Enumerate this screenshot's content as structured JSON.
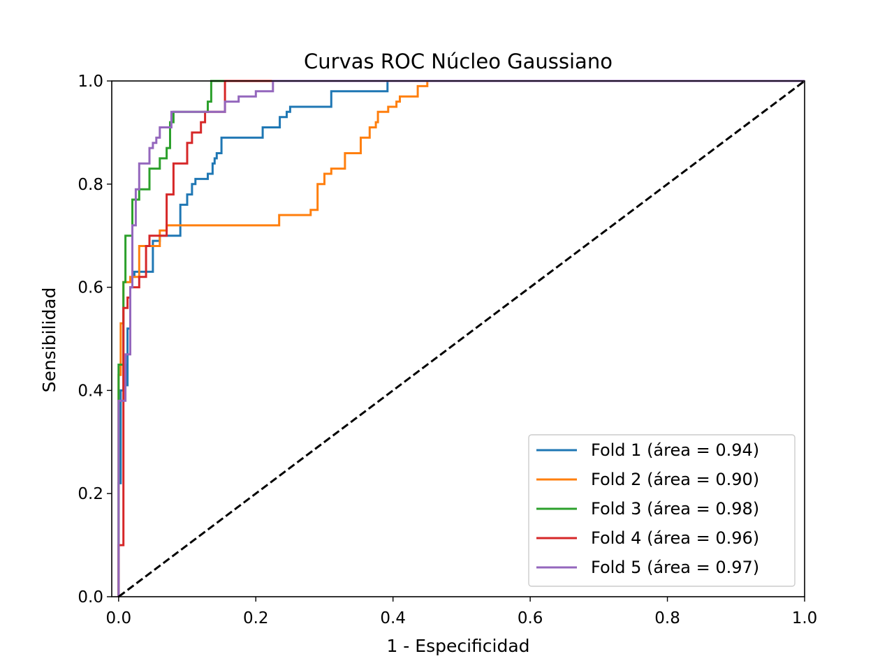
{
  "chart_data": {
    "type": "line",
    "title": "Curvas ROC Núcleo Gaussiano",
    "xlabel": "1 - Especificidad",
    "ylabel": "Sensibilidad",
    "xlim": [
      -0.01,
      1.0
    ],
    "ylim": [
      0.0,
      1.0
    ],
    "xticks": [
      "0.0",
      "0.2",
      "0.4",
      "0.6",
      "0.8",
      "1.0"
    ],
    "yticks": [
      "0.0",
      "0.2",
      "0.4",
      "0.6",
      "0.8",
      "1.0"
    ],
    "grid": false,
    "legend_position": "lower-right",
    "diagonal": {
      "x": [
        0.0,
        1.0
      ],
      "y": [
        0.0,
        1.0
      ],
      "color": "#000000",
      "style": "dashed"
    },
    "series": [
      {
        "name": "Fold 1 (área = 0.94)",
        "color": "#1f77b4",
        "x": [
          0.0,
          0.0,
          0.003,
          0.003,
          0.007,
          0.007,
          0.01,
          0.01,
          0.013,
          0.013,
          0.017,
          0.017,
          0.02,
          0.02,
          0.023,
          0.023,
          0.05,
          0.05,
          0.06,
          0.06,
          0.09,
          0.09,
          0.1,
          0.1,
          0.107,
          0.107,
          0.112,
          0.112,
          0.13,
          0.13,
          0.137,
          0.137,
          0.14,
          0.14,
          0.143,
          0.143,
          0.15,
          0.15,
          0.21,
          0.21,
          0.235,
          0.235,
          0.245,
          0.245,
          0.25,
          0.25,
          0.31,
          0.31,
          0.392,
          0.392,
          1.0
        ],
        "y": [
          0.0,
          0.22,
          0.22,
          0.4,
          0.4,
          0.45,
          0.45,
          0.41,
          0.41,
          0.52,
          0.52,
          0.6,
          0.6,
          0.62,
          0.62,
          0.63,
          0.63,
          0.69,
          0.69,
          0.7,
          0.7,
          0.76,
          0.76,
          0.78,
          0.78,
          0.8,
          0.8,
          0.81,
          0.81,
          0.82,
          0.82,
          0.84,
          0.84,
          0.85,
          0.85,
          0.86,
          0.86,
          0.89,
          0.89,
          0.91,
          0.91,
          0.93,
          0.93,
          0.94,
          0.94,
          0.95,
          0.95,
          0.98,
          0.98,
          1.0,
          1.0
        ]
      },
      {
        "name": "Fold 2 (área = 0.90)",
        "color": "#ff7f0e",
        "x": [
          0.0,
          0.0,
          0.003,
          0.003,
          0.007,
          0.007,
          0.017,
          0.017,
          0.03,
          0.03,
          0.04,
          0.04,
          0.06,
          0.06,
          0.07,
          0.07,
          0.234,
          0.234,
          0.28,
          0.28,
          0.29,
          0.29,
          0.3,
          0.3,
          0.31,
          0.31,
          0.33,
          0.33,
          0.353,
          0.353,
          0.357,
          0.357,
          0.366,
          0.366,
          0.375,
          0.375,
          0.378,
          0.378,
          0.393,
          0.393,
          0.405,
          0.405,
          0.41,
          0.41,
          0.436,
          0.436,
          0.45,
          0.45,
          1.0
        ],
        "y": [
          0.0,
          0.43,
          0.43,
          0.53,
          0.53,
          0.61,
          0.61,
          0.62,
          0.62,
          0.68,
          0.68,
          0.68,
          0.68,
          0.71,
          0.71,
          0.72,
          0.72,
          0.74,
          0.74,
          0.75,
          0.75,
          0.8,
          0.8,
          0.82,
          0.82,
          0.83,
          0.83,
          0.86,
          0.86,
          0.89,
          0.89,
          0.89,
          0.89,
          0.91,
          0.91,
          0.92,
          0.92,
          0.94,
          0.94,
          0.95,
          0.95,
          0.96,
          0.96,
          0.97,
          0.97,
          0.99,
          0.99,
          1.0,
          1.0
        ]
      },
      {
        "name": "Fold 3 (área = 0.98)",
        "color": "#2ca02c",
        "x": [
          0.0,
          0.0,
          0.007,
          0.007,
          0.01,
          0.01,
          0.02,
          0.02,
          0.03,
          0.03,
          0.045,
          0.045,
          0.06,
          0.06,
          0.07,
          0.07,
          0.075,
          0.075,
          0.08,
          0.08,
          0.13,
          0.13,
          0.135,
          0.135,
          1.0
        ],
        "y": [
          0.0,
          0.45,
          0.45,
          0.61,
          0.61,
          0.7,
          0.7,
          0.77,
          0.77,
          0.79,
          0.79,
          0.83,
          0.83,
          0.85,
          0.85,
          0.87,
          0.87,
          0.92,
          0.92,
          0.94,
          0.94,
          0.96,
          0.96,
          1.0,
          1.0
        ]
      },
      {
        "name": "Fold 4 (área = 0.96)",
        "color": "#d62728",
        "x": [
          0.0,
          0.0,
          0.007,
          0.007,
          0.013,
          0.013,
          0.017,
          0.017,
          0.03,
          0.03,
          0.04,
          0.04,
          0.045,
          0.045,
          0.05,
          0.05,
          0.07,
          0.07,
          0.08,
          0.08,
          0.1,
          0.1,
          0.107,
          0.107,
          0.12,
          0.12,
          0.126,
          0.126,
          0.13,
          0.13,
          0.155,
          0.155,
          0.225,
          0.225,
          1.0
        ],
        "y": [
          0.0,
          0.1,
          0.1,
          0.56,
          0.56,
          0.58,
          0.58,
          0.6,
          0.6,
          0.62,
          0.62,
          0.68,
          0.68,
          0.7,
          0.7,
          0.7,
          0.7,
          0.78,
          0.78,
          0.84,
          0.84,
          0.88,
          0.88,
          0.9,
          0.9,
          0.92,
          0.92,
          0.94,
          0.94,
          0.94,
          0.94,
          1.0,
          1.0,
          1.0,
          1.0
        ]
      },
      {
        "name": "Fold 5 (área = 0.97)",
        "color": "#9467bd",
        "x": [
          0.0,
          0.0,
          0.01,
          0.01,
          0.017,
          0.017,
          0.02,
          0.02,
          0.025,
          0.025,
          0.03,
          0.03,
          0.045,
          0.045,
          0.05,
          0.05,
          0.055,
          0.055,
          0.06,
          0.06,
          0.077,
          0.077,
          0.08,
          0.08,
          0.155,
          0.155,
          0.175,
          0.175,
          0.2,
          0.2,
          0.225,
          0.225,
          1.0
        ],
        "y": [
          0.0,
          0.38,
          0.38,
          0.47,
          0.47,
          0.6,
          0.6,
          0.72,
          0.72,
          0.79,
          0.79,
          0.84,
          0.84,
          0.87,
          0.87,
          0.88,
          0.88,
          0.89,
          0.89,
          0.91,
          0.91,
          0.94,
          0.94,
          0.94,
          0.94,
          0.96,
          0.96,
          0.97,
          0.97,
          0.98,
          0.98,
          1.0,
          1.0
        ]
      }
    ]
  }
}
